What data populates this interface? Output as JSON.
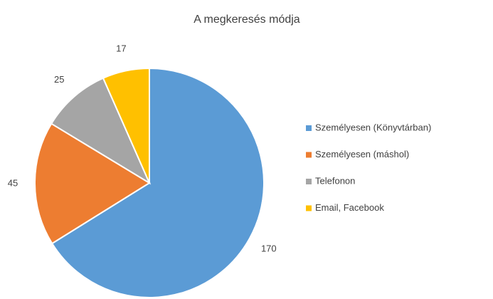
{
  "chart_data": {
    "type": "pie",
    "title": "A megkeresés módja",
    "categories": [
      "Személyesen (Könyvtárban)",
      "Személyesen (máshol)",
      "Telefonon",
      "Email, Facebook"
    ],
    "values": [
      170,
      45,
      25,
      17
    ],
    "colors": [
      "#5b9bd5",
      "#ed7d31",
      "#a5a5a5",
      "#ffc000"
    ],
    "legend": "right"
  }
}
